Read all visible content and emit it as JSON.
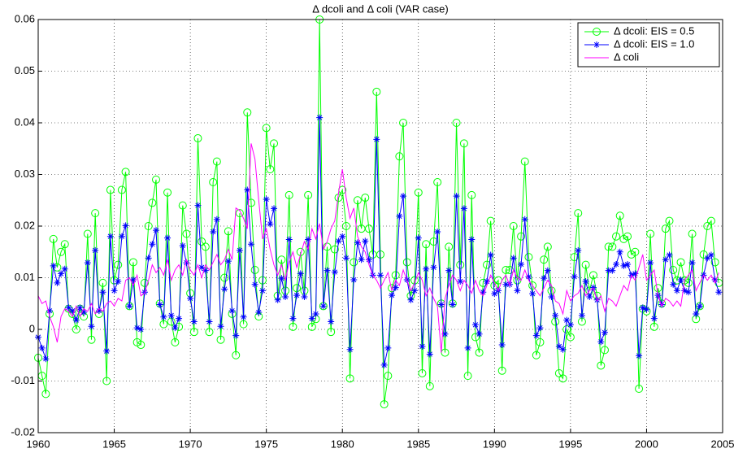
{
  "chart_data": {
    "type": "line",
    "title": "Δ dcoli and Δ coli (VAR case)",
    "x": [
      1960,
      1960.25,
      1960.5,
      1960.75,
      1961,
      1961.25,
      1961.5,
      1961.75,
      1962,
      1962.25,
      1962.5,
      1962.75,
      1963,
      1963.25,
      1963.5,
      1963.75,
      1964,
      1964.25,
      1964.5,
      1964.75,
      1965,
      1965.25,
      1965.5,
      1965.75,
      1966,
      1966.25,
      1966.5,
      1966.75,
      1967,
      1967.25,
      1967.5,
      1967.75,
      1968,
      1968.25,
      1968.5,
      1968.75,
      1969,
      1969.25,
      1969.5,
      1969.75,
      1970,
      1970.25,
      1970.5,
      1970.75,
      1971,
      1971.25,
      1971.5,
      1971.75,
      1972,
      1972.25,
      1972.5,
      1972.75,
      1973,
      1973.25,
      1973.5,
      1973.75,
      1974,
      1974.25,
      1974.5,
      1974.75,
      1975,
      1975.25,
      1975.5,
      1975.75,
      1976,
      1976.25,
      1976.5,
      1976.75,
      1977,
      1977.25,
      1977.5,
      1977.75,
      1978,
      1978.25,
      1978.5,
      1978.75,
      1979,
      1979.25,
      1979.5,
      1979.75,
      1980,
      1980.25,
      1980.5,
      1980.75,
      1981,
      1981.25,
      1981.5,
      1981.75,
      1982,
      1982.25,
      1982.5,
      1982.75,
      1983,
      1983.25,
      1983.5,
      1983.75,
      1984,
      1984.25,
      1984.5,
      1984.75,
      1985,
      1985.25,
      1985.5,
      1985.75,
      1986,
      1986.25,
      1986.5,
      1986.75,
      1987,
      1987.25,
      1987.5,
      1987.75,
      1988,
      1988.25,
      1988.5,
      1988.75,
      1989,
      1989.25,
      1989.5,
      1989.75,
      1990,
      1990.25,
      1990.5,
      1990.75,
      1991,
      1991.25,
      1991.5,
      1991.75,
      1992,
      1992.25,
      1992.5,
      1992.75,
      1993,
      1993.25,
      1993.5,
      1993.75,
      1994,
      1994.25,
      1994.5,
      1994.75,
      1995,
      1995.25,
      1995.5,
      1995.75,
      1996,
      1996.25,
      1996.5,
      1996.75,
      1997,
      1997.25,
      1997.5,
      1997.75,
      1998,
      1998.25,
      1998.5,
      1998.75,
      1999,
      1999.25,
      1999.5,
      1999.75,
      2000,
      2000.25,
      2000.5,
      2000.75,
      2001,
      2001.25,
      2001.5,
      2001.75,
      2002,
      2002.25,
      2002.5,
      2002.75,
      2003,
      2003.25,
      2003.5,
      2003.75,
      2004,
      2004.25,
      2004.5,
      2004.75
    ],
    "series": [
      {
        "name": "Δ dcoli: EIS = 0.5",
        "color": "#00ff00",
        "marker": "circle",
        "values": [
          -0.0055,
          -0.009,
          -0.0125,
          0.003,
          0.0175,
          0.012,
          0.015,
          0.0165,
          0.004,
          0.003,
          0.0,
          0.004,
          0.0025,
          0.0185,
          -0.002,
          0.0225,
          0.003,
          0.009,
          -0.01,
          0.027,
          0.0095,
          0.0125,
          0.027,
          0.0305,
          0.0045,
          0.013,
          -0.0025,
          -0.003,
          0.009,
          0.02,
          0.0245,
          0.029,
          0.005,
          0.001,
          0.0265,
          0.0015,
          -0.0025,
          0.0005,
          0.024,
          0.0185,
          0.007,
          -0.0005,
          0.037,
          0.017,
          0.016,
          -0.0005,
          0.0285,
          0.0325,
          -0.002,
          0.01,
          0.019,
          0.003,
          -0.005,
          0.0225,
          0.001,
          0.042,
          0.0245,
          0.0115,
          0.0025,
          0.0095,
          0.039,
          0.031,
          0.036,
          0.0065,
          0.0135,
          0.0075,
          0.026,
          0.0005,
          0.008,
          0.015,
          0.0075,
          0.026,
          0.0005,
          0.002,
          0.06,
          0.0045,
          0.016,
          -0.0005,
          0.0155,
          0.0255,
          0.027,
          0.02,
          -0.0095,
          0.013,
          0.025,
          0.0195,
          0.0255,
          0.0195,
          0.0145,
          0.046,
          0.0145,
          -0.0145,
          -0.009,
          0.008,
          0.0105,
          0.0335,
          0.04,
          0.013,
          0.0065,
          0.0095,
          0.0265,
          -0.0085,
          0.0165,
          -0.011,
          0.017,
          0.0285,
          0.005,
          -0.0045,
          0.016,
          0.005,
          0.04,
          0.0125,
          0.036,
          -0.009,
          0.026,
          -0.0015,
          -0.0045,
          0.009,
          0.0125,
          0.021,
          0.0085,
          0.0095,
          -0.008,
          0.0115,
          0.0115,
          0.02,
          0.0095,
          0.018,
          0.0325,
          0.014,
          0.0085,
          -0.005,
          -0.0025,
          0.0135,
          0.016,
          0.0075,
          0.0015,
          -0.0085,
          -0.0095,
          0.0,
          -0.0015,
          0.014,
          0.0225,
          0.0015,
          0.0125,
          0.0075,
          0.0105,
          0.0065,
          -0.007,
          -0.004,
          0.016,
          0.016,
          0.018,
          0.022,
          0.0175,
          0.018,
          0.0145,
          0.015,
          -0.0115,
          0.004,
          0.0035,
          0.0185,
          0.0005,
          0.008,
          0.005,
          0.0195,
          0.021,
          0.0115,
          0.0095,
          0.013,
          0.0095,
          0.009,
          0.0185,
          0.002,
          0.0045,
          0.0145,
          0.02,
          0.021,
          0.013,
          0.009
        ]
      },
      {
        "name": "Δ dcoli: EIS = 1.0",
        "color": "#0000ff",
        "marker": "asterisk",
        "values": [
          -0.0015,
          -0.0036,
          -0.0057,
          0.0036,
          0.0123,
          0.009,
          0.0108,
          0.0117,
          0.0042,
          0.0036,
          0.0018,
          0.0042,
          0.0033,
          0.0129,
          0.0006,
          0.0153,
          0.0036,
          0.0072,
          -0.0042,
          0.018,
          0.0075,
          0.0093,
          0.018,
          0.0201,
          0.0045,
          0.0096,
          0.0003,
          0.0,
          0.0072,
          0.0138,
          0.0165,
          0.0192,
          0.0048,
          0.0024,
          0.0177,
          0.0027,
          0.0003,
          0.0021,
          0.0162,
          0.0129,
          0.006,
          0.0015,
          0.024,
          0.012,
          0.0114,
          0.0015,
          0.0189,
          0.0213,
          0.0006,
          0.0078,
          0.0132,
          0.0036,
          -0.0012,
          0.0153,
          0.0024,
          0.027,
          0.0165,
          0.0087,
          0.0033,
          0.0075,
          0.0252,
          0.0204,
          0.0234,
          0.0057,
          0.0099,
          0.0063,
          0.0174,
          0.0021,
          0.0066,
          0.0108,
          0.0063,
          0.0174,
          0.0021,
          0.003,
          0.041,
          0.0045,
          0.0114,
          0.0015,
          0.0111,
          0.0171,
          0.018,
          0.0138,
          -0.0039,
          0.0096,
          0.0168,
          0.0135,
          0.0171,
          0.0135,
          0.0105,
          0.0368,
          0.0105,
          -0.0069,
          -0.0036,
          0.0066,
          0.0081,
          0.0219,
          0.0258,
          0.0096,
          0.0057,
          0.0075,
          0.0177,
          -0.0033,
          0.0117,
          -0.0048,
          0.012,
          0.0189,
          0.0048,
          -0.0009,
          0.0114,
          0.0048,
          0.0258,
          0.0093,
          0.0234,
          -0.0036,
          0.0174,
          0.0009,
          -0.0009,
          0.0072,
          0.0093,
          0.0144,
          0.0069,
          0.0075,
          -0.003,
          0.0087,
          0.0087,
          0.0138,
          0.0075,
          0.0126,
          0.0213,
          0.0102,
          0.0069,
          -0.0012,
          0.0003,
          0.0099,
          0.0114,
          0.0063,
          0.0027,
          -0.0033,
          -0.0039,
          0.0018,
          0.0009,
          0.0102,
          0.0153,
          0.0027,
          0.0093,
          0.0063,
          0.0081,
          0.0057,
          -0.0024,
          -0.0006,
          0.0114,
          0.0114,
          0.0126,
          0.015,
          0.0123,
          0.0126,
          0.0105,
          0.0108,
          -0.0051,
          0.0042,
          0.0039,
          0.0129,
          0.0021,
          0.0066,
          0.0048,
          0.0135,
          0.0144,
          0.0087,
          0.0075,
          0.0096,
          0.0075,
          0.0072,
          0.0129,
          0.003,
          0.0045,
          0.0105,
          0.0138,
          0.0144,
          0.0096,
          0.0072
        ]
      },
      {
        "name": "Δ coli",
        "color": "#ff00ff",
        "marker": "none",
        "values": [
          0.0065,
          0.005,
          0.0055,
          0.0025,
          0.0005,
          -0.0025,
          0.0025,
          0.004,
          0.0035,
          0.0025,
          0.0045,
          0.0025,
          0.004,
          0.0035,
          0.005,
          0.003,
          0.004,
          0.0035,
          0.005,
          0.0055,
          0.0045,
          0.006,
          0.0055,
          0.0095,
          0.01,
          0.0085,
          0.0105,
          0.0065,
          0.007,
          0.0095,
          0.0125,
          0.011,
          0.012,
          0.0105,
          0.0135,
          0.0095,
          0.0115,
          0.0125,
          0.0105,
          0.0135,
          0.0115,
          0.0105,
          0.0125,
          0.01,
          0.0125,
          0.0115,
          0.013,
          0.0145,
          0.0125,
          0.0135,
          0.0155,
          0.0135,
          0.0235,
          0.023,
          0.0215,
          0.0195,
          0.036,
          0.033,
          0.025,
          0.0175,
          0.0195,
          0.0155,
          0.0125,
          0.0105,
          0.0125,
          0.0095,
          0.013,
          0.015,
          0.012,
          0.0145,
          0.017,
          0.0155,
          0.0195,
          0.0175,
          0.0205,
          0.0155,
          0.017,
          0.0195,
          0.021,
          0.0265,
          0.031,
          0.0255,
          0.0215,
          0.0235,
          0.018,
          0.016,
          0.015,
          0.0125,
          0.0105,
          0.0095,
          0.008,
          0.0095,
          0.011,
          0.0075,
          0.0095,
          0.0085,
          0.0115,
          0.0095,
          0.0075,
          0.009,
          0.011,
          0.0095,
          0.0065,
          0.008,
          0.006,
          0.0045,
          -0.0045,
          0.006,
          0.0085,
          0.0105,
          0.0095,
          0.0075,
          0.0095,
          0.0085,
          0.007,
          0.0095,
          0.0075,
          0.0065,
          0.0085,
          0.0105,
          0.009,
          0.0075,
          0.0095,
          0.0105,
          0.0085,
          0.0115,
          0.01,
          0.0095,
          0.0115,
          0.0095,
          0.0085,
          0.0075,
          0.0065,
          0.008,
          0.0095,
          0.0085,
          0.0055,
          0.005,
          0.003,
          0.0075,
          0.0055,
          0.0065,
          0.007,
          0.0085,
          0.0065,
          0.0075,
          0.008,
          0.0055,
          0.0065,
          0.0035,
          0.006,
          0.0055,
          0.0045,
          0.0065,
          0.0085,
          0.0075,
          0.0105,
          0.0095,
          0.012,
          0.0145,
          0.0095,
          0.0105,
          0.0115,
          0.0065,
          0.0045,
          0.006,
          0.0055,
          0.0045,
          0.0055,
          0.0045,
          0.0095,
          0.0105,
          0.0115,
          0.0075,
          0.009,
          0.0105,
          0.0095,
          0.0105,
          0.009,
          0.011
        ]
      }
    ],
    "xlim": [
      1960,
      2005
    ],
    "xticks": [
      1960,
      1965,
      1970,
      1975,
      1980,
      1985,
      1990,
      1995,
      2000,
      2005
    ],
    "ylim": [
      -0.02,
      0.06
    ],
    "yticks": [
      -0.02,
      -0.01,
      0,
      0.01,
      0.02,
      0.03,
      0.04,
      0.05,
      0.06
    ],
    "grid": true,
    "legend_position": "upper right"
  }
}
